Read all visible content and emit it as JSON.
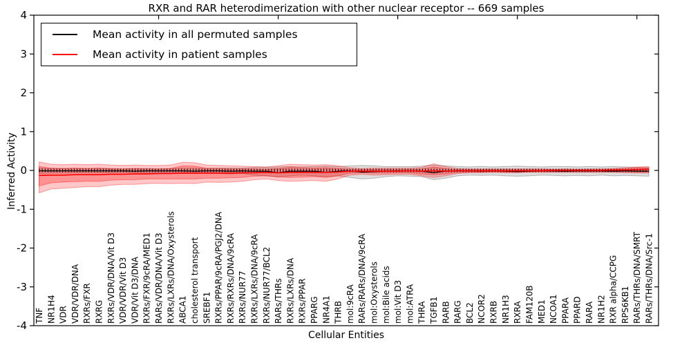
{
  "figure": {
    "title": "RXR and RAR heterodimerization with other nuclear receptor -- 669 samples"
  },
  "axes": {
    "xlabel": "Cellular Entities",
    "ylabel": "Inferred Activity"
  },
  "legend": {
    "items": [
      {
        "label": "Mean activity in all permuted samples",
        "color": "#000000"
      },
      {
        "label": "Mean activity in patient samples",
        "color": "#ff0000"
      }
    ]
  },
  "chart_data": {
    "type": "line",
    "title": "RXR and RAR heterodimerization with other nuclear receptor -- 669 samples",
    "xlabel": "Cellular Entities",
    "ylabel": "Inferred Activity",
    "ylim": [
      -4,
      4
    ],
    "yticks": [
      -4,
      -3,
      -2,
      -1,
      0,
      1,
      2,
      3,
      4
    ],
    "xtick_positions": [
      10,
      20,
      30,
      40,
      50
    ],
    "grid": false,
    "legend_position": "upper left",
    "zero_line": {
      "value": 0,
      "style": "dense-vertical-dashes",
      "color": "#000000"
    },
    "categories": [
      "TNF",
      "NR1H4",
      "VDR",
      "VDR/VDR/DNA",
      "RXRs/FXR",
      "RXRG",
      "RXRs/VDR/DNA/Vit D3",
      "VDR/VDR/Vit D3",
      "VDR/Vit D3/DNA",
      "RXRs/FXR/9cRA/MED1",
      "RARs/VDR/DNA/Vit D3",
      "RXRs/LXRs/DNA/Oxysterols",
      "ABCA1",
      "cholesterol transport",
      "SREBF1",
      "RXRs/PPAR/9cRA/PGJ2/DNA",
      "RXRs/RXRs/DNA/9cRA",
      "RXRs/NUR77",
      "RXRs/LXRs/DNA/9cRA",
      "RXRs/NUR77/BCL2",
      "RARs/THRs",
      "RXRs/LXRs/DNA",
      "RXRs/PPAR",
      "PPARG",
      "NR4A1",
      "THRB",
      "mol:9cRA",
      "RARs/RARs/DNA/9cRA",
      "mol:Oxysterols",
      "mol:Bile acids",
      "mol:Vit D3",
      "mol:ATRA",
      "THRA",
      "TGFB1",
      "RARB",
      "RARG",
      "BCL2",
      "NCOR2",
      "RXRB",
      "NR1H3",
      "RXRA",
      "FAM120B",
      "MED1",
      "NCOA1",
      "PPARA",
      "PPARD",
      "RARA",
      "NR1H2",
      "RXR alpha/CCPG",
      "RPS6KB1",
      "RARs/THRs/DNA/SMRT",
      "RARs/THRs/DNA/Src-1"
    ],
    "series": [
      {
        "name": "Mean activity in all permuted samples",
        "color": "#000000",
        "values": [
          -0.01,
          -0.01,
          -0.01,
          -0.01,
          -0.01,
          -0.01,
          -0.01,
          -0.01,
          -0.02,
          -0.01,
          -0.01,
          -0.01,
          -0.01,
          -0.02,
          -0.01,
          -0.01,
          -0.02,
          -0.01,
          -0.02,
          -0.02,
          -0.06,
          -0.02,
          -0.02,
          -0.02,
          -0.05,
          -0.02,
          -0.01,
          -0.04,
          -0.03,
          -0.02,
          -0.01,
          -0.01,
          -0.02,
          -0.06,
          -0.02,
          -0.01,
          -0.01,
          -0.02,
          -0.01,
          -0.02,
          -0.03,
          -0.02,
          -0.01,
          -0.01,
          -0.02,
          -0.01,
          -0.01,
          -0.01,
          -0.02,
          -0.01,
          -0.02,
          -0.02
        ]
      },
      {
        "name": "Mean activity in patient samples",
        "color": "#ff0000",
        "values": [
          -0.13,
          -0.12,
          -0.12,
          -0.11,
          -0.11,
          -0.11,
          -0.1,
          -0.1,
          -0.09,
          -0.09,
          -0.08,
          -0.08,
          -0.07,
          -0.07,
          -0.07,
          -0.07,
          -0.07,
          -0.06,
          -0.06,
          -0.05,
          -0.06,
          -0.05,
          -0.05,
          -0.05,
          -0.05,
          -0.04,
          -0.02,
          -0.02,
          -0.02,
          -0.02,
          -0.02,
          -0.01,
          -0.02,
          -0.01,
          -0.02,
          -0.01,
          -0.01,
          -0.01,
          -0.01,
          -0.01,
          -0.01,
          -0.01,
          -0.01,
          0.0,
          0.0,
          0.0,
          0.0,
          0.0,
          0.01,
          0.01,
          0.02,
          0.03
        ]
      }
    ],
    "bands": [
      {
        "name": "permuted-samples-range",
        "color": "#000000",
        "opacity": 0.13,
        "upper": [
          0.06,
          0.05,
          0.05,
          0.05,
          0.05,
          0.05,
          0.04,
          0.04,
          0.05,
          0.05,
          0.04,
          0.05,
          0.06,
          0.06,
          0.05,
          0.06,
          0.06,
          0.06,
          0.08,
          0.08,
          0.09,
          0.1,
          0.09,
          0.1,
          0.11,
          0.1,
          0.12,
          0.13,
          0.12,
          0.1,
          0.1,
          0.1,
          0.11,
          0.14,
          0.12,
          0.1,
          0.09,
          0.1,
          0.09,
          0.1,
          0.11,
          0.1,
          0.09,
          0.1,
          0.1,
          0.09,
          0.1,
          0.09,
          0.1,
          0.09,
          0.08,
          0.07
        ],
        "lower": [
          -0.08,
          -0.07,
          -0.07,
          -0.06,
          -0.06,
          -0.06,
          -0.06,
          -0.05,
          -0.06,
          -0.06,
          -0.06,
          -0.07,
          -0.08,
          -0.08,
          -0.07,
          -0.08,
          -0.09,
          -0.08,
          -0.12,
          -0.14,
          -0.16,
          -0.14,
          -0.12,
          -0.14,
          -0.16,
          -0.14,
          -0.18,
          -0.22,
          -0.2,
          -0.16,
          -0.14,
          -0.15,
          -0.16,
          -0.24,
          -0.2,
          -0.14,
          -0.12,
          -0.13,
          -0.12,
          -0.14,
          -0.15,
          -0.14,
          -0.12,
          -0.13,
          -0.14,
          -0.13,
          -0.14,
          -0.12,
          -0.14,
          -0.13,
          -0.14,
          -0.15
        ]
      },
      {
        "name": "patient-samples-outer-range",
        "color": "#ff0000",
        "opacity": 0.22,
        "upper": [
          0.22,
          0.16,
          0.15,
          0.16,
          0.15,
          0.16,
          0.14,
          0.13,
          0.14,
          0.13,
          0.13,
          0.14,
          0.21,
          0.2,
          0.14,
          0.13,
          0.12,
          0.11,
          0.1,
          0.09,
          0.12,
          0.16,
          0.15,
          0.14,
          0.15,
          0.12,
          0.07,
          0.05,
          0.06,
          0.06,
          0.06,
          0.06,
          0.08,
          0.17,
          0.1,
          0.05,
          0.04,
          0.04,
          0.04,
          0.04,
          0.04,
          0.04,
          0.04,
          0.03,
          0.04,
          0.03,
          0.04,
          0.04,
          0.05,
          0.07,
          0.09,
          0.1
        ],
        "lower": [
          -0.58,
          -0.48,
          -0.46,
          -0.44,
          -0.42,
          -0.42,
          -0.38,
          -0.36,
          -0.36,
          -0.34,
          -0.33,
          -0.34,
          -0.33,
          -0.34,
          -0.3,
          -0.31,
          -0.3,
          -0.28,
          -0.24,
          -0.22,
          -0.26,
          -0.28,
          -0.27,
          -0.26,
          -0.28,
          -0.22,
          -0.12,
          -0.1,
          -0.12,
          -0.11,
          -0.1,
          -0.1,
          -0.14,
          -0.18,
          -0.14,
          -0.08,
          -0.06,
          -0.06,
          -0.05,
          -0.06,
          -0.06,
          -0.05,
          -0.05,
          -0.05,
          -0.05,
          -0.05,
          -0.05,
          -0.05,
          -0.05,
          -0.06,
          -0.07,
          -0.07
        ]
      },
      {
        "name": "patient-samples-inner-range",
        "color": "#ff0000",
        "opacity": 0.26,
        "upper": [
          0.1,
          0.06,
          0.05,
          0.06,
          0.05,
          0.06,
          0.05,
          0.04,
          0.05,
          0.04,
          0.04,
          0.05,
          0.12,
          0.11,
          0.06,
          0.05,
          0.04,
          0.04,
          0.04,
          0.03,
          0.05,
          0.08,
          0.07,
          0.06,
          0.07,
          0.05,
          0.03,
          0.02,
          0.03,
          0.03,
          0.03,
          0.03,
          0.04,
          0.09,
          0.05,
          0.02,
          0.02,
          0.02,
          0.02,
          0.02,
          0.02,
          0.02,
          0.02,
          0.02,
          0.02,
          0.02,
          0.02,
          0.02,
          0.03,
          0.04,
          0.06,
          0.07
        ],
        "lower": [
          -0.4,
          -0.32,
          -0.3,
          -0.29,
          -0.28,
          -0.28,
          -0.25,
          -0.24,
          -0.24,
          -0.22,
          -0.22,
          -0.22,
          -0.22,
          -0.22,
          -0.2,
          -0.2,
          -0.19,
          -0.18,
          -0.15,
          -0.14,
          -0.17,
          -0.18,
          -0.17,
          -0.16,
          -0.18,
          -0.14,
          -0.07,
          -0.06,
          -0.07,
          -0.07,
          -0.06,
          -0.06,
          -0.09,
          -0.11,
          -0.09,
          -0.05,
          -0.04,
          -0.04,
          -0.03,
          -0.04,
          -0.04,
          -0.03,
          -0.03,
          -0.03,
          -0.03,
          -0.03,
          -0.03,
          -0.03,
          -0.03,
          -0.03,
          -0.04,
          -0.04
        ]
      }
    ]
  }
}
